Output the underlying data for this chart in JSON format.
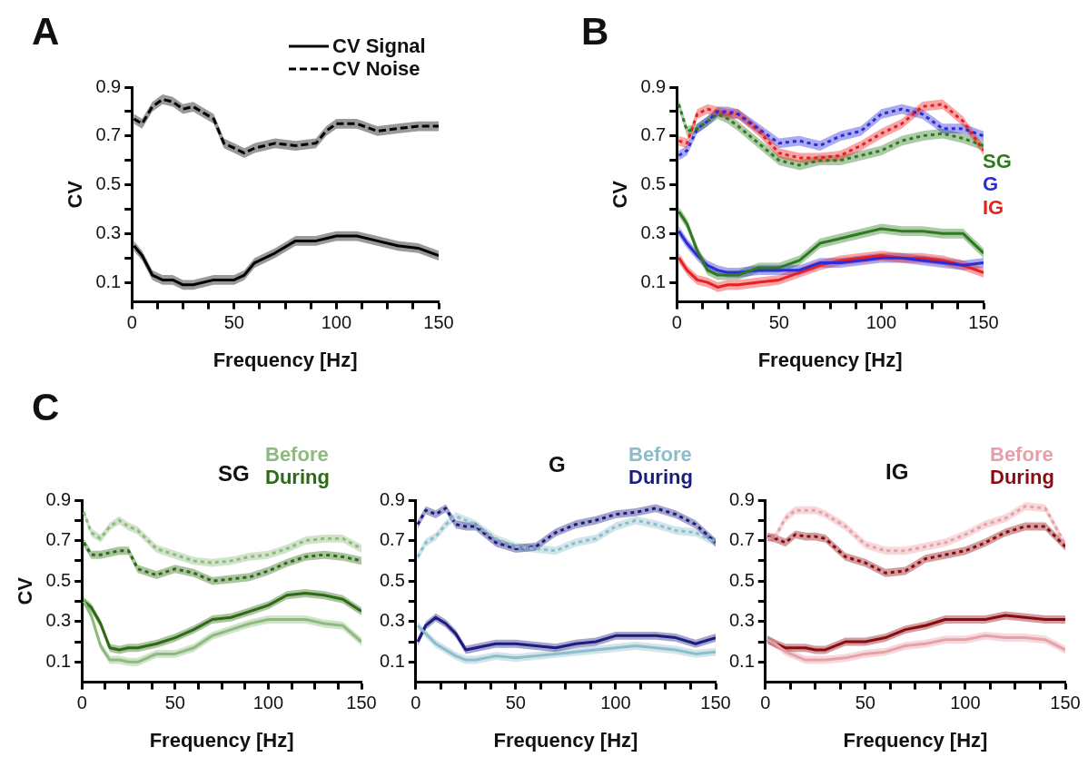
{
  "chart_data": [
    {
      "type": "line",
      "title": "A",
      "xlabel": "Frequency [Hz]",
      "ylabel": "CV",
      "legend": "top right",
      "marker": "none",
      "grid": false,
      "xlim": [
        0,
        150
      ],
      "xticks": [
        0,
        {
          "value": 12.5,
          "label": null
        },
        {
          "value": 25,
          "label": null
        },
        {
          "value": 37.5,
          "label": null
        },
        50,
        {
          "value": 62.5,
          "label": null
        },
        {
          "value": 75,
          "label": null
        },
        {
          "value": 87.5,
          "label": null
        },
        100,
        {
          "value": 112.5,
          "label": null
        },
        {
          "value": 125,
          "label": null
        },
        {
          "value": 137.5,
          "label": null
        },
        150
      ],
      "ylim": [
        0.02,
        0.9
      ],
      "yticks": [
        0.1,
        {
          "value": 0.2,
          "label": null
        },
        0.3,
        {
          "value": 0.4,
          "label": null
        },
        0.5,
        {
          "value": 0.6,
          "label": null
        },
        0.7,
        {
          "value": 0.8,
          "label": null
        },
        0.9
      ],
      "x": [
        1,
        5,
        10,
        15,
        20,
        25,
        30,
        40,
        45,
        50,
        55,
        60,
        70,
        80,
        90,
        95,
        100,
        110,
        120,
        130,
        140,
        150
      ],
      "series": [
        {
          "name": "CV Signal",
          "color": "#000000",
          "line_style": "solid",
          "values": [
            0.25,
            0.21,
            0.13,
            0.11,
            0.11,
            0.09,
            0.09,
            0.11,
            0.11,
            0.11,
            0.13,
            0.18,
            0.22,
            0.27,
            0.27,
            0.28,
            0.29,
            0.29,
            0.27,
            0.25,
            0.24,
            0.21
          ],
          "lower": [
            0.23,
            0.19,
            0.11,
            0.09,
            0.09,
            0.07,
            0.07,
            0.09,
            0.09,
            0.09,
            0.11,
            0.16,
            0.2,
            0.25,
            0.25,
            0.26,
            0.27,
            0.27,
            0.25,
            0.23,
            0.22,
            0.19
          ],
          "upper": [
            0.27,
            0.23,
            0.15,
            0.13,
            0.13,
            0.11,
            0.11,
            0.13,
            0.13,
            0.13,
            0.15,
            0.2,
            0.24,
            0.29,
            0.29,
            0.3,
            0.31,
            0.31,
            0.29,
            0.27,
            0.26,
            0.23
          ]
        },
        {
          "name": "CV Noise",
          "color": "#000000",
          "line_style": "dashed",
          "values": [
            0.77,
            0.75,
            0.82,
            0.85,
            0.84,
            0.81,
            0.82,
            0.77,
            0.67,
            0.65,
            0.63,
            0.65,
            0.67,
            0.66,
            0.67,
            0.72,
            0.75,
            0.75,
            0.72,
            0.73,
            0.74,
            0.74
          ],
          "lower": [
            0.75,
            0.73,
            0.8,
            0.83,
            0.82,
            0.79,
            0.8,
            0.75,
            0.65,
            0.63,
            0.61,
            0.63,
            0.65,
            0.64,
            0.65,
            0.7,
            0.73,
            0.73,
            0.7,
            0.71,
            0.72,
            0.72
          ],
          "upper": [
            0.79,
            0.77,
            0.84,
            0.87,
            0.86,
            0.83,
            0.84,
            0.79,
            0.69,
            0.67,
            0.65,
            0.67,
            0.69,
            0.68,
            0.69,
            0.74,
            0.77,
            0.77,
            0.74,
            0.75,
            0.76,
            0.76
          ]
        }
      ]
    },
    {
      "type": "line",
      "title": "B",
      "xlabel": "Frequency [Hz]",
      "ylabel": "CV",
      "legend": "right",
      "marker": "none",
      "grid": false,
      "xlim": [
        0,
        150
      ],
      "xticks": [
        0,
        {
          "value": 12.5,
          "label": null
        },
        {
          "value": 25,
          "label": null
        },
        {
          "value": 37.5,
          "label": null
        },
        50,
        {
          "value": 62.5,
          "label": null
        },
        {
          "value": 75,
          "label": null
        },
        {
          "value": 87.5,
          "label": null
        },
        100,
        {
          "value": 112.5,
          "label": null
        },
        {
          "value": 125,
          "label": null
        },
        {
          "value": 137.5,
          "label": null
        },
        150
      ],
      "ylim": [
        0.02,
        0.9
      ],
      "yticks": [
        0.1,
        {
          "value": 0.2,
          "label": null
        },
        0.3,
        {
          "value": 0.4,
          "label": null
        },
        0.5,
        {
          "value": 0.6,
          "label": null
        },
        0.7,
        {
          "value": 0.8,
          "label": null
        },
        0.9
      ],
      "x": [
        1,
        5,
        10,
        15,
        20,
        25,
        30,
        40,
        50,
        60,
        70,
        80,
        90,
        100,
        110,
        120,
        130,
        140,
        150
      ],
      "series": [
        {
          "name": "SG",
          "color": "#2f7a1f",
          "line_style": "solid",
          "values": [
            0.39,
            0.34,
            0.23,
            0.15,
            0.13,
            0.13,
            0.13,
            0.16,
            0.16,
            0.19,
            0.26,
            0.28,
            0.3,
            0.32,
            0.31,
            0.31,
            0.3,
            0.3,
            0.22
          ],
          "lower": [
            0.37,
            0.32,
            0.21,
            0.13,
            0.11,
            0.11,
            0.11,
            0.14,
            0.14,
            0.17,
            0.24,
            0.26,
            0.28,
            0.3,
            0.29,
            0.29,
            0.28,
            0.28,
            0.2
          ],
          "upper": [
            0.41,
            0.36,
            0.25,
            0.17,
            0.15,
            0.15,
            0.15,
            0.18,
            0.18,
            0.21,
            0.28,
            0.3,
            0.32,
            0.34,
            0.33,
            0.33,
            0.32,
            0.32,
            0.24
          ]
        },
        {
          "name": "G",
          "color": "#2b2bd8",
          "line_style": "solid",
          "values": [
            0.31,
            0.26,
            0.21,
            0.17,
            0.15,
            0.14,
            0.14,
            0.15,
            0.15,
            0.15,
            0.18,
            0.18,
            0.19,
            0.2,
            0.2,
            0.19,
            0.18,
            0.17,
            0.18
          ],
          "lower": [
            0.29,
            0.24,
            0.19,
            0.15,
            0.13,
            0.12,
            0.12,
            0.13,
            0.13,
            0.13,
            0.16,
            0.16,
            0.17,
            0.18,
            0.18,
            0.17,
            0.16,
            0.15,
            0.16
          ],
          "upper": [
            0.33,
            0.28,
            0.23,
            0.19,
            0.17,
            0.16,
            0.16,
            0.17,
            0.17,
            0.17,
            0.2,
            0.2,
            0.21,
            0.22,
            0.22,
            0.21,
            0.2,
            0.19,
            0.2
          ]
        },
        {
          "name": "IG",
          "color": "#e82020",
          "line_style": "solid",
          "values": [
            0.2,
            0.15,
            0.11,
            0.1,
            0.08,
            0.09,
            0.09,
            0.1,
            0.11,
            0.14,
            0.17,
            0.19,
            0.2,
            0.21,
            0.2,
            0.2,
            0.19,
            0.17,
            0.14
          ],
          "lower": [
            0.18,
            0.13,
            0.09,
            0.08,
            0.06,
            0.07,
            0.07,
            0.08,
            0.09,
            0.12,
            0.15,
            0.17,
            0.18,
            0.19,
            0.18,
            0.18,
            0.17,
            0.15,
            0.12
          ],
          "upper": [
            0.22,
            0.17,
            0.13,
            0.12,
            0.1,
            0.11,
            0.11,
            0.12,
            0.13,
            0.16,
            0.19,
            0.21,
            0.22,
            0.23,
            0.22,
            0.22,
            0.21,
            0.19,
            0.16
          ]
        },
        {
          "color": "#2f7a1f",
          "line_style": "dotted",
          "values": [
            0.83,
            0.72,
            0.73,
            0.76,
            0.79,
            0.77,
            0.74,
            0.67,
            0.6,
            0.58,
            0.6,
            0.6,
            0.62,
            0.64,
            0.68,
            0.7,
            0.71,
            0.69,
            0.66
          ],
          "lower": [
            0.81,
            0.7,
            0.71,
            0.74,
            0.77,
            0.75,
            0.72,
            0.65,
            0.58,
            0.56,
            0.58,
            0.58,
            0.6,
            0.62,
            0.66,
            0.68,
            0.69,
            0.67,
            0.64
          ],
          "upper": [
            0.85,
            0.74,
            0.75,
            0.78,
            0.81,
            0.79,
            0.76,
            0.69,
            0.62,
            0.6,
            0.62,
            0.62,
            0.64,
            0.66,
            0.7,
            0.72,
            0.73,
            0.71,
            0.68
          ]
        },
        {
          "color": "#2b2bd8",
          "line_style": "dotted",
          "values": [
            0.62,
            0.64,
            0.73,
            0.76,
            0.8,
            0.8,
            0.79,
            0.73,
            0.67,
            0.68,
            0.66,
            0.7,
            0.72,
            0.79,
            0.81,
            0.79,
            0.73,
            0.73,
            0.7
          ],
          "lower": [
            0.6,
            0.62,
            0.71,
            0.74,
            0.78,
            0.78,
            0.77,
            0.71,
            0.65,
            0.66,
            0.64,
            0.68,
            0.7,
            0.77,
            0.79,
            0.77,
            0.71,
            0.71,
            0.68
          ],
          "upper": [
            0.64,
            0.66,
            0.75,
            0.78,
            0.82,
            0.82,
            0.81,
            0.75,
            0.69,
            0.7,
            0.68,
            0.72,
            0.74,
            0.81,
            0.83,
            0.81,
            0.75,
            0.75,
            0.72
          ]
        },
        {
          "color": "#e82020",
          "line_style": "dotted",
          "values": [
            0.68,
            0.67,
            0.79,
            0.81,
            0.8,
            0.79,
            0.79,
            0.72,
            0.63,
            0.61,
            0.61,
            0.62,
            0.66,
            0.71,
            0.75,
            0.82,
            0.83,
            0.76,
            0.64
          ],
          "lower": [
            0.66,
            0.65,
            0.77,
            0.79,
            0.78,
            0.77,
            0.77,
            0.7,
            0.61,
            0.59,
            0.59,
            0.6,
            0.64,
            0.69,
            0.73,
            0.8,
            0.81,
            0.74,
            0.62
          ],
          "upper": [
            0.7,
            0.69,
            0.81,
            0.83,
            0.82,
            0.81,
            0.81,
            0.74,
            0.65,
            0.63,
            0.63,
            0.64,
            0.68,
            0.73,
            0.77,
            0.84,
            0.85,
            0.78,
            0.66
          ]
        }
      ]
    },
    {
      "type": "line",
      "title": "SG",
      "annotations": [
        "C"
      ],
      "xlabel": "Frequency [Hz]",
      "ylabel": "CV",
      "legend": "top right",
      "marker": "none",
      "grid": false,
      "xlim": [
        0,
        150
      ],
      "xticks": [
        0,
        {
          "value": 12.5,
          "label": null
        },
        {
          "value": 25,
          "label": null
        },
        {
          "value": 37.5,
          "label": null
        },
        50,
        {
          "value": 62.5,
          "label": null
        },
        {
          "value": 75,
          "label": null
        },
        {
          "value": 87.5,
          "label": null
        },
        100,
        {
          "value": 112.5,
          "label": null
        },
        {
          "value": 125,
          "label": null
        },
        {
          "value": 137.5,
          "label": null
        },
        150
      ],
      "ylim": [
        0,
        0.9
      ],
      "yticks": [
        0.1,
        {
          "value": 0.2,
          "label": null
        },
        0.3,
        {
          "value": 0.4,
          "label": null
        },
        0.5,
        {
          "value": 0.6,
          "label": null
        },
        0.7,
        {
          "value": 0.8,
          "label": null
        },
        0.9
      ],
      "x": [
        1,
        5,
        10,
        15,
        20,
        25,
        30,
        40,
        50,
        60,
        70,
        80,
        90,
        100,
        110,
        120,
        130,
        140,
        150
      ],
      "series": [
        {
          "name": "Before",
          "color": "#8dbb7e",
          "line_style": "solid",
          "values": [
            0.4,
            0.33,
            0.18,
            0.11,
            0.11,
            0.1,
            0.1,
            0.14,
            0.14,
            0.17,
            0.23,
            0.26,
            0.29,
            0.31,
            0.31,
            0.31,
            0.29,
            0.28,
            0.2
          ],
          "lower": [
            0.38,
            0.31,
            0.16,
            0.09,
            0.09,
            0.08,
            0.08,
            0.12,
            0.12,
            0.15,
            0.21,
            0.24,
            0.27,
            0.29,
            0.29,
            0.29,
            0.27,
            0.26,
            0.18
          ],
          "upper": [
            0.42,
            0.35,
            0.2,
            0.13,
            0.13,
            0.12,
            0.12,
            0.16,
            0.16,
            0.19,
            0.25,
            0.28,
            0.31,
            0.33,
            0.33,
            0.33,
            0.31,
            0.3,
            0.22
          ]
        },
        {
          "name": "During",
          "color": "#2d6a14",
          "line_style": "solid",
          "values": [
            0.4,
            0.37,
            0.29,
            0.17,
            0.16,
            0.17,
            0.17,
            0.19,
            0.22,
            0.26,
            0.31,
            0.32,
            0.35,
            0.38,
            0.43,
            0.44,
            0.43,
            0.41,
            0.35
          ],
          "lower": [
            0.38,
            0.35,
            0.27,
            0.15,
            0.14,
            0.15,
            0.15,
            0.17,
            0.2,
            0.24,
            0.29,
            0.3,
            0.33,
            0.36,
            0.41,
            0.42,
            0.41,
            0.39,
            0.33
          ],
          "upper": [
            0.42,
            0.39,
            0.31,
            0.19,
            0.18,
            0.19,
            0.19,
            0.21,
            0.24,
            0.28,
            0.33,
            0.34,
            0.37,
            0.4,
            0.45,
            0.46,
            0.45,
            0.43,
            0.37
          ]
        },
        {
          "color": "#8dbb7e",
          "line_style": "dotted",
          "values": [
            0.84,
            0.74,
            0.71,
            0.77,
            0.8,
            0.77,
            0.75,
            0.66,
            0.63,
            0.6,
            0.59,
            0.6,
            0.62,
            0.63,
            0.66,
            0.7,
            0.71,
            0.71,
            0.66
          ],
          "lower": [
            0.82,
            0.72,
            0.69,
            0.75,
            0.78,
            0.75,
            0.73,
            0.64,
            0.61,
            0.58,
            0.57,
            0.58,
            0.6,
            0.61,
            0.64,
            0.68,
            0.69,
            0.69,
            0.64
          ],
          "upper": [
            0.86,
            0.76,
            0.73,
            0.79,
            0.82,
            0.79,
            0.77,
            0.68,
            0.65,
            0.62,
            0.61,
            0.62,
            0.64,
            0.65,
            0.68,
            0.72,
            0.73,
            0.73,
            0.68
          ]
        },
        {
          "color": "#2d6a14",
          "line_style": "dotted",
          "values": [
            0.69,
            0.63,
            0.63,
            0.64,
            0.65,
            0.65,
            0.56,
            0.53,
            0.56,
            0.54,
            0.5,
            0.51,
            0.52,
            0.55,
            0.59,
            0.62,
            0.63,
            0.62,
            0.6
          ],
          "lower": [
            0.67,
            0.61,
            0.61,
            0.62,
            0.63,
            0.63,
            0.54,
            0.51,
            0.54,
            0.52,
            0.48,
            0.49,
            0.5,
            0.53,
            0.57,
            0.6,
            0.61,
            0.6,
            0.58
          ],
          "upper": [
            0.71,
            0.65,
            0.65,
            0.66,
            0.67,
            0.67,
            0.58,
            0.55,
            0.58,
            0.56,
            0.52,
            0.53,
            0.54,
            0.57,
            0.61,
            0.64,
            0.65,
            0.64,
            0.62
          ]
        }
      ]
    },
    {
      "type": "line",
      "title": "G",
      "xlabel": "Frequency [Hz]",
      "legend": "top right",
      "marker": "none",
      "grid": false,
      "xlim": [
        0,
        150
      ],
      "xticks": [
        0,
        {
          "value": 12.5,
          "label": null
        },
        {
          "value": 25,
          "label": null
        },
        {
          "value": 37.5,
          "label": null
        },
        50,
        {
          "value": 62.5,
          "label": null
        },
        {
          "value": 75,
          "label": null
        },
        {
          "value": 87.5,
          "label": null
        },
        100,
        {
          "value": 112.5,
          "label": null
        },
        {
          "value": 125,
          "label": null
        },
        {
          "value": 137.5,
          "label": null
        },
        150
      ],
      "ylim": [
        0,
        0.9
      ],
      "yticks": [
        0.1,
        {
          "value": 0.2,
          "label": null
        },
        0.3,
        {
          "value": 0.4,
          "label": null
        },
        0.5,
        {
          "value": 0.6,
          "label": null
        },
        0.7,
        {
          "value": 0.8,
          "label": null
        },
        0.9
      ],
      "x": [
        1,
        5,
        10,
        15,
        20,
        25,
        30,
        40,
        50,
        60,
        70,
        80,
        90,
        100,
        110,
        120,
        130,
        140,
        150
      ],
      "series": [
        {
          "name": "Before",
          "color": "#8dbdca",
          "line_style": "solid",
          "values": [
            0.28,
            0.24,
            0.19,
            0.16,
            0.13,
            0.11,
            0.11,
            0.13,
            0.12,
            0.13,
            0.14,
            0.15,
            0.16,
            0.17,
            0.18,
            0.17,
            0.16,
            0.14,
            0.15
          ],
          "lower": [
            0.26,
            0.22,
            0.17,
            0.14,
            0.11,
            0.09,
            0.09,
            0.11,
            0.1,
            0.11,
            0.12,
            0.13,
            0.14,
            0.15,
            0.16,
            0.15,
            0.14,
            0.12,
            0.13
          ],
          "upper": [
            0.3,
            0.26,
            0.21,
            0.18,
            0.15,
            0.13,
            0.13,
            0.15,
            0.14,
            0.15,
            0.16,
            0.17,
            0.18,
            0.19,
            0.2,
            0.19,
            0.18,
            0.16,
            0.17
          ]
        },
        {
          "name": "During",
          "color": "#1c1c80",
          "line_style": "solid",
          "values": [
            0.2,
            0.28,
            0.32,
            0.29,
            0.24,
            0.16,
            0.17,
            0.19,
            0.19,
            0.18,
            0.17,
            0.19,
            0.2,
            0.23,
            0.23,
            0.23,
            0.22,
            0.19,
            0.22
          ],
          "lower": [
            0.18,
            0.26,
            0.3,
            0.27,
            0.22,
            0.14,
            0.15,
            0.17,
            0.17,
            0.16,
            0.15,
            0.17,
            0.18,
            0.21,
            0.21,
            0.21,
            0.2,
            0.17,
            0.2
          ],
          "upper": [
            0.22,
            0.3,
            0.34,
            0.31,
            0.26,
            0.18,
            0.19,
            0.21,
            0.21,
            0.2,
            0.19,
            0.21,
            0.22,
            0.25,
            0.25,
            0.25,
            0.24,
            0.21,
            0.24
          ]
        },
        {
          "color": "#8dbdca",
          "line_style": "dotted",
          "values": [
            0.62,
            0.69,
            0.72,
            0.78,
            0.82,
            0.8,
            0.78,
            0.71,
            0.67,
            0.66,
            0.65,
            0.69,
            0.71,
            0.77,
            0.8,
            0.78,
            0.75,
            0.74,
            0.69
          ],
          "lower": [
            0.6,
            0.67,
            0.7,
            0.76,
            0.8,
            0.78,
            0.76,
            0.69,
            0.65,
            0.64,
            0.63,
            0.67,
            0.69,
            0.75,
            0.78,
            0.76,
            0.73,
            0.72,
            0.67
          ],
          "upper": [
            0.64,
            0.71,
            0.74,
            0.8,
            0.84,
            0.82,
            0.8,
            0.73,
            0.69,
            0.68,
            0.67,
            0.71,
            0.73,
            0.79,
            0.82,
            0.8,
            0.77,
            0.76,
            0.71
          ]
        },
        {
          "color": "#1c1c80",
          "line_style": "dotted",
          "values": [
            0.78,
            0.85,
            0.83,
            0.86,
            0.78,
            0.77,
            0.77,
            0.69,
            0.66,
            0.67,
            0.74,
            0.78,
            0.8,
            0.83,
            0.84,
            0.86,
            0.83,
            0.78,
            0.69
          ],
          "lower": [
            0.76,
            0.83,
            0.81,
            0.84,
            0.76,
            0.75,
            0.75,
            0.67,
            0.64,
            0.65,
            0.72,
            0.76,
            0.78,
            0.81,
            0.82,
            0.84,
            0.81,
            0.76,
            0.67
          ],
          "upper": [
            0.8,
            0.87,
            0.85,
            0.88,
            0.8,
            0.79,
            0.79,
            0.71,
            0.68,
            0.69,
            0.76,
            0.8,
            0.82,
            0.85,
            0.86,
            0.88,
            0.85,
            0.8,
            0.71
          ]
        }
      ]
    },
    {
      "type": "line",
      "title": "IG",
      "xlabel": "Frequency [Hz]",
      "legend": "top right",
      "marker": "none",
      "grid": false,
      "xlim": [
        0,
        150
      ],
      "xticks": [
        0,
        {
          "value": 12.5,
          "label": null
        },
        {
          "value": 25,
          "label": null
        },
        {
          "value": 37.5,
          "label": null
        },
        50,
        {
          "value": 62.5,
          "label": null
        },
        {
          "value": 75,
          "label": null
        },
        {
          "value": 87.5,
          "label": null
        },
        100,
        {
          "value": 112.5,
          "label": null
        },
        {
          "value": 125,
          "label": null
        },
        {
          "value": 137.5,
          "label": null
        },
        150
      ],
      "ylim": [
        0,
        0.9
      ],
      "yticks": [
        0.1,
        {
          "value": 0.2,
          "label": null
        },
        0.3,
        {
          "value": 0.4,
          "label": null
        },
        0.5,
        {
          "value": 0.6,
          "label": null
        },
        0.7,
        {
          "value": 0.8,
          "label": null
        },
        0.9
      ],
      "x": [
        1,
        5,
        10,
        15,
        20,
        25,
        30,
        40,
        50,
        60,
        70,
        80,
        90,
        100,
        110,
        120,
        130,
        140,
        150
      ],
      "series": [
        {
          "name": "Before",
          "color": "#e8a0a8",
          "line_style": "solid",
          "values": [
            0.21,
            0.19,
            0.15,
            0.13,
            0.11,
            0.11,
            0.11,
            0.12,
            0.14,
            0.15,
            0.18,
            0.19,
            0.21,
            0.21,
            0.23,
            0.22,
            0.22,
            0.21,
            0.16
          ],
          "lower": [
            0.19,
            0.17,
            0.13,
            0.11,
            0.09,
            0.09,
            0.09,
            0.1,
            0.12,
            0.13,
            0.16,
            0.17,
            0.19,
            0.19,
            0.21,
            0.2,
            0.2,
            0.19,
            0.14
          ],
          "upper": [
            0.23,
            0.21,
            0.17,
            0.15,
            0.13,
            0.13,
            0.13,
            0.14,
            0.16,
            0.17,
            0.2,
            0.21,
            0.23,
            0.23,
            0.25,
            0.24,
            0.24,
            0.23,
            0.18
          ]
        },
        {
          "name": "During",
          "color": "#8b0a10",
          "line_style": "solid",
          "values": [
            0.21,
            0.19,
            0.17,
            0.17,
            0.17,
            0.16,
            0.16,
            0.2,
            0.2,
            0.22,
            0.26,
            0.28,
            0.31,
            0.31,
            0.31,
            0.33,
            0.32,
            0.31,
            0.31
          ],
          "lower": [
            0.19,
            0.17,
            0.15,
            0.15,
            0.15,
            0.14,
            0.14,
            0.18,
            0.18,
            0.2,
            0.24,
            0.26,
            0.29,
            0.29,
            0.29,
            0.31,
            0.3,
            0.29,
            0.29
          ],
          "upper": [
            0.23,
            0.21,
            0.19,
            0.19,
            0.19,
            0.18,
            0.18,
            0.22,
            0.22,
            0.24,
            0.28,
            0.3,
            0.33,
            0.33,
            0.33,
            0.35,
            0.34,
            0.33,
            0.33
          ]
        },
        {
          "color": "#e8a0a8",
          "line_style": "dotted",
          "values": [
            0.71,
            0.72,
            0.81,
            0.85,
            0.85,
            0.85,
            0.83,
            0.77,
            0.68,
            0.65,
            0.65,
            0.67,
            0.69,
            0.73,
            0.78,
            0.81,
            0.87,
            0.86,
            0.68
          ],
          "lower": [
            0.69,
            0.7,
            0.79,
            0.83,
            0.83,
            0.83,
            0.81,
            0.75,
            0.66,
            0.63,
            0.63,
            0.65,
            0.67,
            0.71,
            0.76,
            0.79,
            0.85,
            0.84,
            0.66
          ],
          "upper": [
            0.73,
            0.74,
            0.83,
            0.87,
            0.87,
            0.87,
            0.85,
            0.79,
            0.7,
            0.67,
            0.67,
            0.69,
            0.71,
            0.75,
            0.8,
            0.83,
            0.89,
            0.88,
            0.7
          ]
        },
        {
          "color": "#8b0a10",
          "line_style": "dotted",
          "values": [
            0.72,
            0.71,
            0.69,
            0.73,
            0.72,
            0.72,
            0.71,
            0.62,
            0.59,
            0.54,
            0.55,
            0.61,
            0.63,
            0.65,
            0.69,
            0.74,
            0.77,
            0.77,
            0.67
          ],
          "lower": [
            0.7,
            0.69,
            0.67,
            0.71,
            0.7,
            0.7,
            0.69,
            0.6,
            0.57,
            0.52,
            0.53,
            0.59,
            0.61,
            0.63,
            0.67,
            0.72,
            0.75,
            0.75,
            0.65
          ],
          "upper": [
            0.74,
            0.73,
            0.71,
            0.75,
            0.74,
            0.74,
            0.73,
            0.64,
            0.61,
            0.56,
            0.57,
            0.63,
            0.65,
            0.67,
            0.71,
            0.76,
            0.79,
            0.79,
            0.69
          ]
        }
      ]
    }
  ]
}
